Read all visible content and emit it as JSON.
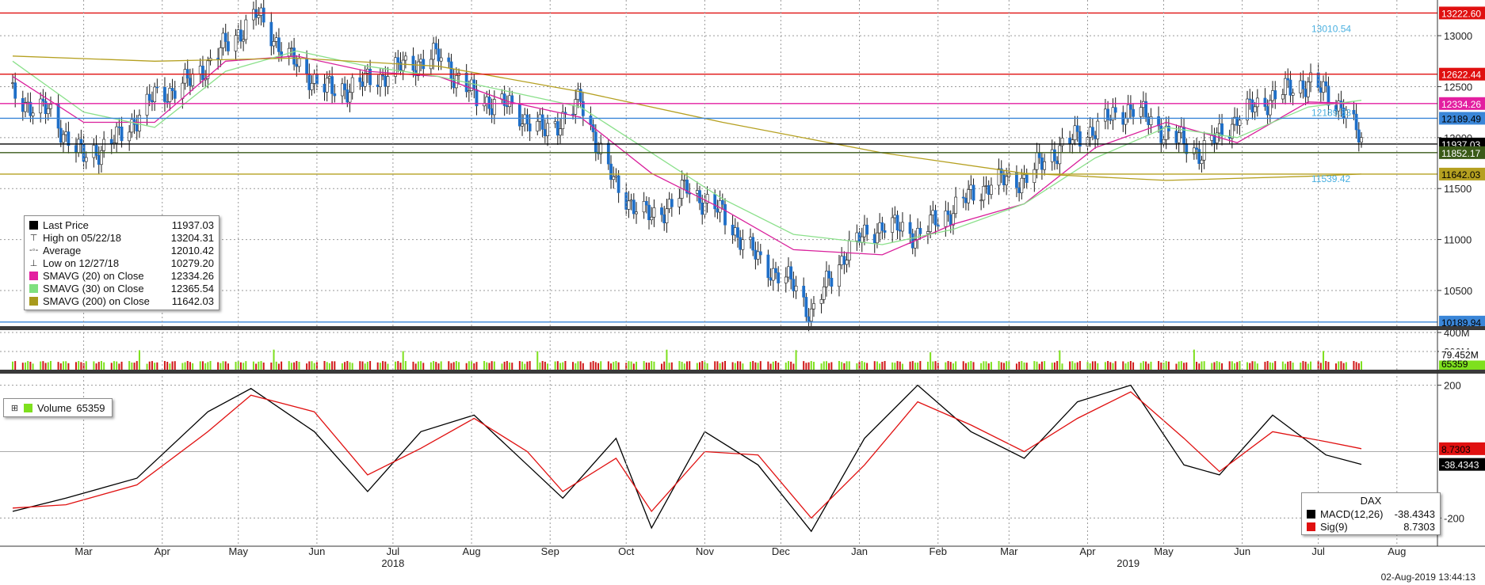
{
  "chart_data": [
    {
      "type": "candlestick",
      "panel": "price",
      "ylim": [
        10150,
        13350
      ],
      "y_ticks": [
        10500,
        11000,
        11500,
        12000,
        12500,
        13000
      ],
      "series": [
        {
          "name": "Last Price",
          "color": "#1f6fc8",
          "x": [
            "2018-02-15",
            "2018-03-01",
            "2018-03-15",
            "2018-03-29",
            "2018-04-12",
            "2018-04-26",
            "2018-05-10",
            "2018-05-22",
            "2018-06-07",
            "2018-06-21",
            "2018-07-05",
            "2018-07-19",
            "2018-08-02",
            "2018-08-16",
            "2018-08-30",
            "2018-09-13",
            "2018-09-27",
            "2018-10-11",
            "2018-10-25",
            "2018-11-08",
            "2018-11-22",
            "2018-12-06",
            "2018-12-20",
            "2018-12-27",
            "2019-01-10",
            "2019-01-24",
            "2019-02-07",
            "2019-02-21",
            "2019-03-07",
            "2019-03-21",
            "2019-04-04",
            "2019-04-18",
            "2019-05-02",
            "2019-05-16",
            "2019-05-30",
            "2019-06-13",
            "2019-06-27",
            "2019-07-11",
            "2019-07-25",
            "2019-08-01"
          ],
          "values": [
            12400,
            12250,
            11800,
            12000,
            12400,
            12550,
            12900,
            13204,
            12700,
            12450,
            12550,
            12700,
            12800,
            12400,
            12300,
            12050,
            12350,
            11500,
            11200,
            11500,
            11250,
            10800,
            10550,
            10279,
            10900,
            11150,
            11050,
            11300,
            11550,
            11600,
            11900,
            12100,
            12300,
            12050,
            11850,
            12200,
            12400,
            12550,
            12300,
            11937
          ]
        },
        {
          "name": "SMAVG (20)  on Close",
          "color": "#d91f9b",
          "x": [
            "2018-02-15",
            "2018-03-15",
            "2018-04-12",
            "2018-05-10",
            "2018-06-07",
            "2018-07-05",
            "2018-08-02",
            "2018-08-30",
            "2018-09-27",
            "2018-10-25",
            "2018-11-22",
            "2018-12-20",
            "2019-01-24",
            "2019-02-21",
            "2019-03-21",
            "2019-04-18",
            "2019-05-16",
            "2019-06-13",
            "2019-07-11",
            "2019-08-01"
          ],
          "values": [
            12600,
            12150,
            12150,
            12750,
            12800,
            12650,
            12600,
            12350,
            12200,
            11650,
            11300,
            10900,
            10850,
            11150,
            11350,
            11900,
            12150,
            11950,
            12350,
            12334
          ]
        },
        {
          "name": "SMAVG (30)  on Close",
          "color": "#8be08b",
          "x": [
            "2018-02-15",
            "2018-03-15",
            "2018-04-12",
            "2018-05-10",
            "2018-06-07",
            "2018-07-05",
            "2018-08-02",
            "2018-08-30",
            "2018-09-27",
            "2018-10-25",
            "2018-11-22",
            "2018-12-20",
            "2019-01-24",
            "2019-02-21",
            "2019-03-21",
            "2019-04-18",
            "2019-05-16",
            "2019-06-13",
            "2019-07-11",
            "2019-08-01"
          ],
          "values": [
            12750,
            12250,
            12100,
            12650,
            12850,
            12700,
            12600,
            12450,
            12300,
            11850,
            11400,
            11050,
            10950,
            11100,
            11350,
            11800,
            12100,
            12000,
            12300,
            12366
          ]
        },
        {
          "name": "SMAVG (200)  on Close",
          "color": "#b5a020",
          "x": [
            "2018-02-15",
            "2018-04-12",
            "2018-06-07",
            "2018-08-02",
            "2018-09-27",
            "2018-11-22",
            "2019-01-24",
            "2019-03-21",
            "2019-05-16",
            "2019-07-11",
            "2019-08-01"
          ],
          "values": [
            12800,
            12750,
            12780,
            12700,
            12450,
            12150,
            11850,
            11650,
            11580,
            11620,
            11642
          ]
        }
      ],
      "legend": {
        "rows": [
          {
            "glyph": "square",
            "color": "#000000",
            "label": "Last Price",
            "value": "11937.03"
          },
          {
            "glyph": "high",
            "color": "#555555",
            "label": "High on 05/22/18",
            "value": "13204.31"
          },
          {
            "glyph": "avg",
            "color": "#555555",
            "label": "Average",
            "value": "12010.42"
          },
          {
            "glyph": "low",
            "color": "#555555",
            "label": "Low on 12/27/18",
            "value": "10279.20"
          },
          {
            "glyph": "square",
            "color": "#e31fa0",
            "label": "SMAVG (20)  on Close",
            "value": "12334.26"
          },
          {
            "glyph": "square",
            "color": "#7fe07f",
            "label": "SMAVG (30)  on Close",
            "value": "12365.54"
          },
          {
            "glyph": "square",
            "color": "#a89a1c",
            "label": "SMAVG (200)  on Close",
            "value": "11642.03"
          }
        ]
      },
      "level_tags": [
        {
          "value": 13222.6,
          "label": "13222.60",
          "bg": "#e01010",
          "fg": "#ffffff"
        },
        {
          "value": 12622.44,
          "label": "12622.44",
          "bg": "#e01010",
          "fg": "#ffffff"
        },
        {
          "value": 12334.26,
          "label": "12334.26",
          "bg": "#e31fa0",
          "fg": "#ffffff"
        },
        {
          "value": 12189.49,
          "label": "12189.49",
          "bg": "#3a86d8",
          "fg": "#000000"
        },
        {
          "value": 11937.03,
          "label": "11937.03",
          "bg": "#000000",
          "fg": "#ffffff"
        },
        {
          "value": 11852.17,
          "label": "11852.17",
          "bg": "#3a5a18",
          "fg": "#ffffff"
        },
        {
          "value": 11642.03,
          "label": "11642.03",
          "bg": "#b5a020",
          "fg": "#000000"
        },
        {
          "value": 10189.94,
          "label": "10189.94",
          "bg": "#3a86d8",
          "fg": "#000000"
        }
      ],
      "annotations": [
        {
          "text": "13010.54",
          "value": 13010.54,
          "color": "#4ab0e0"
        },
        {
          "text": "12189.33",
          "value": 12189.33,
          "color": "#4ab0e0"
        },
        {
          "text": "11539.42",
          "value": 11539.42,
          "color": "#4ab0e0"
        }
      ]
    },
    {
      "type": "bar",
      "panel": "volume",
      "ylim": [
        0,
        400
      ],
      "y_ticks": [
        {
          "value": 400,
          "label": "400M"
        },
        {
          "value": 200,
          "label": "200M"
        }
      ],
      "legend": {
        "label": "Volume",
        "value": "65359",
        "color": "#7ee01e"
      },
      "level_tags": [
        {
          "value": 65.359,
          "label": "65359",
          "bg": "#7ee01e",
          "fg": "#000000"
        },
        {
          "value": 79.452,
          "label": "79.452M",
          "bg": "#ffffff",
          "fg": "#000000"
        }
      ]
    },
    {
      "type": "line",
      "panel": "macd",
      "ylim": [
        -280,
        230
      ],
      "y_ticks": [
        200,
        -200
      ],
      "series": [
        {
          "name": "MACD(12,26)",
          "color": "#000000",
          "x": [
            "2018-02-15",
            "2018-03-08",
            "2018-04-05",
            "2018-05-03",
            "2018-05-20",
            "2018-06-14",
            "2018-07-05",
            "2018-07-26",
            "2018-08-16",
            "2018-09-06",
            "2018-09-20",
            "2018-10-11",
            "2018-10-25",
            "2018-11-15",
            "2018-12-06",
            "2018-12-27",
            "2019-01-17",
            "2019-02-07",
            "2019-02-28",
            "2019-03-21",
            "2019-04-11",
            "2019-05-02",
            "2019-05-23",
            "2019-06-06",
            "2019-06-27",
            "2019-07-18",
            "2019-08-01"
          ],
          "values": [
            -180,
            -140,
            -80,
            120,
            190,
            60,
            -120,
            60,
            110,
            -40,
            -140,
            40,
            -230,
            60,
            -40,
            -240,
            40,
            200,
            60,
            -20,
            150,
            200,
            -40,
            -70,
            110,
            -10,
            -38.43
          ]
        },
        {
          "name": "Sig(9)",
          "color": "#e01010",
          "x": [
            "2018-02-15",
            "2018-03-08",
            "2018-04-05",
            "2018-05-03",
            "2018-05-20",
            "2018-06-14",
            "2018-07-05",
            "2018-07-26",
            "2018-08-16",
            "2018-09-06",
            "2018-09-20",
            "2018-10-11",
            "2018-10-25",
            "2018-11-15",
            "2018-12-06",
            "2018-12-27",
            "2019-01-17",
            "2019-02-07",
            "2019-02-28",
            "2019-03-21",
            "2019-04-11",
            "2019-05-02",
            "2019-05-23",
            "2019-06-06",
            "2019-06-27",
            "2019-07-18",
            "2019-08-01"
          ],
          "values": [
            -170,
            -160,
            -100,
            60,
            170,
            120,
            -70,
            10,
            100,
            0,
            -120,
            -20,
            -180,
            0,
            -10,
            -200,
            -40,
            150,
            80,
            0,
            100,
            180,
            40,
            -60,
            60,
            30,
            8.73
          ]
        }
      ],
      "legend": {
        "title": "DAX",
        "rows": [
          {
            "color": "#000000",
            "label": "MACD(12,26)",
            "value": "-38.4343"
          },
          {
            "color": "#e01010",
            "label": "Sig(9)",
            "value": "8.7303"
          }
        ]
      },
      "level_tags": [
        {
          "value": 8.7303,
          "label": "8.7303",
          "bg": "#e01010",
          "fg": "#000000"
        },
        {
          "value": -38.4343,
          "label": "-38.4343",
          "bg": "#000000",
          "fg": "#ffffff"
        }
      ]
    }
  ],
  "x_axis": {
    "months": [
      {
        "label": "Mar",
        "date": "2018-03-15"
      },
      {
        "label": "Apr",
        "date": "2018-04-15"
      },
      {
        "label": "May",
        "date": "2018-05-15"
      },
      {
        "label": "Jun",
        "date": "2018-06-15"
      },
      {
        "label": "Jul",
        "date": "2018-07-15"
      },
      {
        "label": "Aug",
        "date": "2018-08-15"
      },
      {
        "label": "Sep",
        "date": "2018-09-15"
      },
      {
        "label": "Oct",
        "date": "2018-10-15"
      },
      {
        "label": "Nov",
        "date": "2018-11-15"
      },
      {
        "label": "Dec",
        "date": "2018-12-15"
      },
      {
        "label": "Jan",
        "date": "2019-01-15"
      },
      {
        "label": "Feb",
        "date": "2019-02-15"
      },
      {
        "label": "Mar",
        "date": "2019-03-15"
      },
      {
        "label": "Apr",
        "date": "2019-04-15"
      },
      {
        "label": "May",
        "date": "2019-05-15"
      },
      {
        "label": "Jun",
        "date": "2019-06-15"
      },
      {
        "label": "Jul",
        "date": "2019-07-15"
      },
      {
        "label": "Aug",
        "date": "2019-08-15"
      }
    ],
    "years": [
      {
        "label": "2018",
        "date": "2018-07-15"
      },
      {
        "label": "2019",
        "date": "2019-05-01"
      }
    ],
    "range": [
      "2018-02-10",
      "2019-08-31"
    ]
  },
  "timestamp": "02-Aug-2019 13:44:13",
  "colors": {
    "grid": "#9a9a9a",
    "red_level": "#e01010",
    "blue_level": "#3a86d8",
    "cyan_level": "#4ab0e0",
    "olive_level": "#3a5a18",
    "arrow": "#4f9a1a",
    "candle_up": "#ffffff",
    "candle_down": "#1f6fc8",
    "volume_up": "#7ee01e",
    "volume_down": "#d01818"
  }
}
